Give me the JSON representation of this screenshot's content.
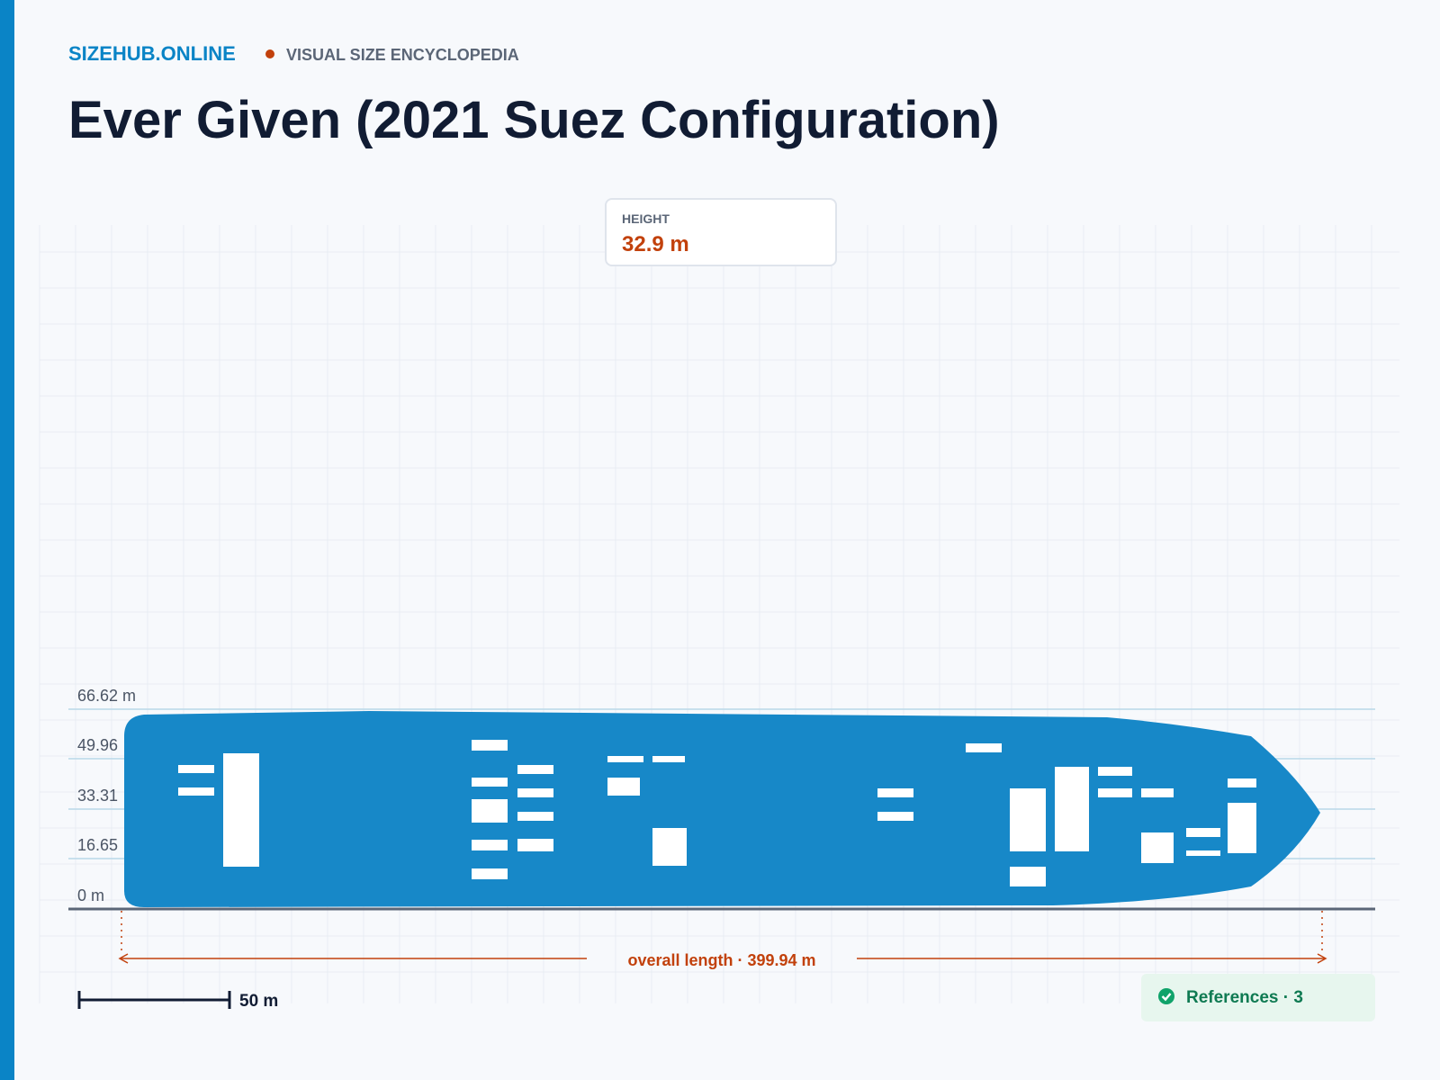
{
  "header": {
    "site": "SIZEHUB.ONLINE",
    "section": "VISUAL SIZE ENCYCLOPEDIA"
  },
  "title": "Ever Given (2021 Suez Configuration)",
  "height_card": {
    "label": "HEIGHT",
    "value": "32.9 m"
  },
  "axis_labels": [
    "66.62 m",
    "49.96",
    "33.31",
    "16.65",
    "0 m"
  ],
  "length_label": "overall length · 399.94 m",
  "scale_bar": "50 m",
  "references": "References · 3"
}
